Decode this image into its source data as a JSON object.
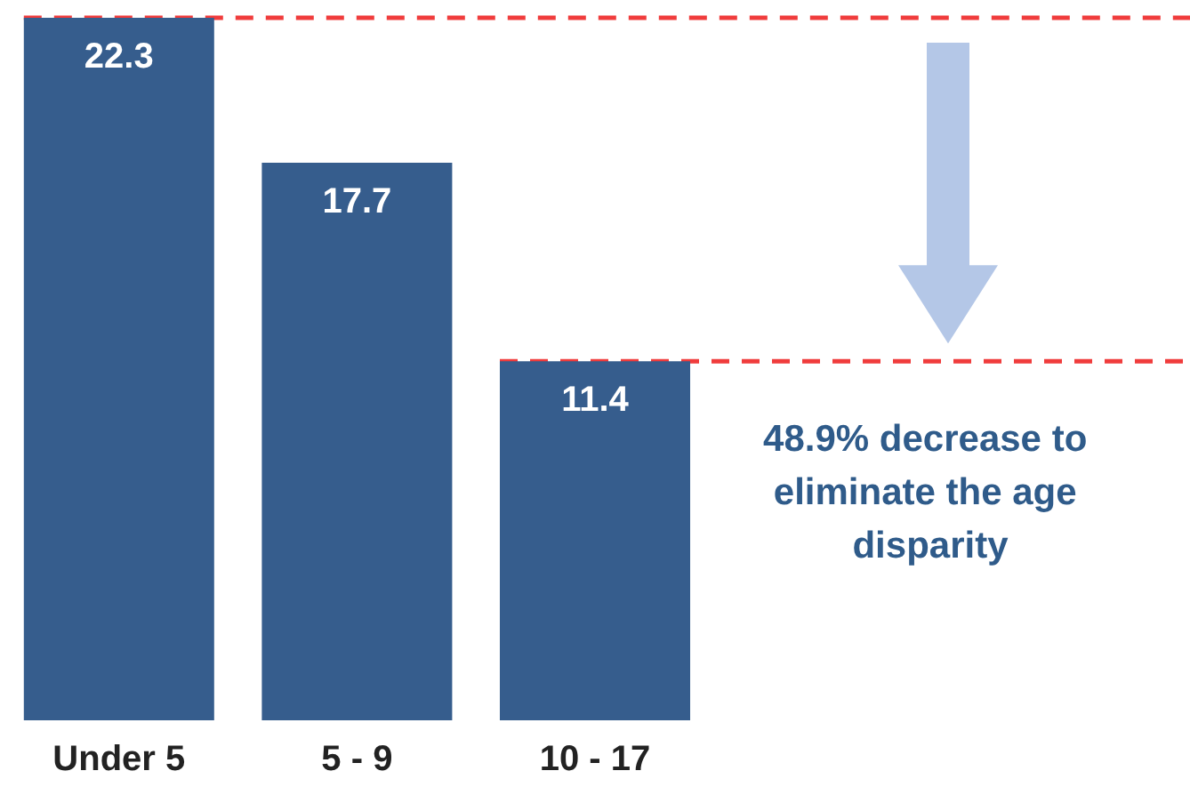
{
  "chart_data": {
    "type": "bar",
    "categories": [
      "Under 5",
      "5 - 9",
      "10 - 17"
    ],
    "values": [
      22.3,
      17.7,
      11.4
    ],
    "color": "#365d8d",
    "data_labels": true,
    "ylim": [
      0,
      22.3
    ],
    "grid": false,
    "ref_lines": [
      {
        "axis": "y",
        "value": 22.3,
        "color": "#f03c3c",
        "line_style": "dashed"
      },
      {
        "axis": "y",
        "value": 11.4,
        "color": "#f03c3c",
        "line_style": "dashed"
      }
    ],
    "annotations": [
      "48.9% decrease to eliminate the age disparity"
    ]
  }
}
